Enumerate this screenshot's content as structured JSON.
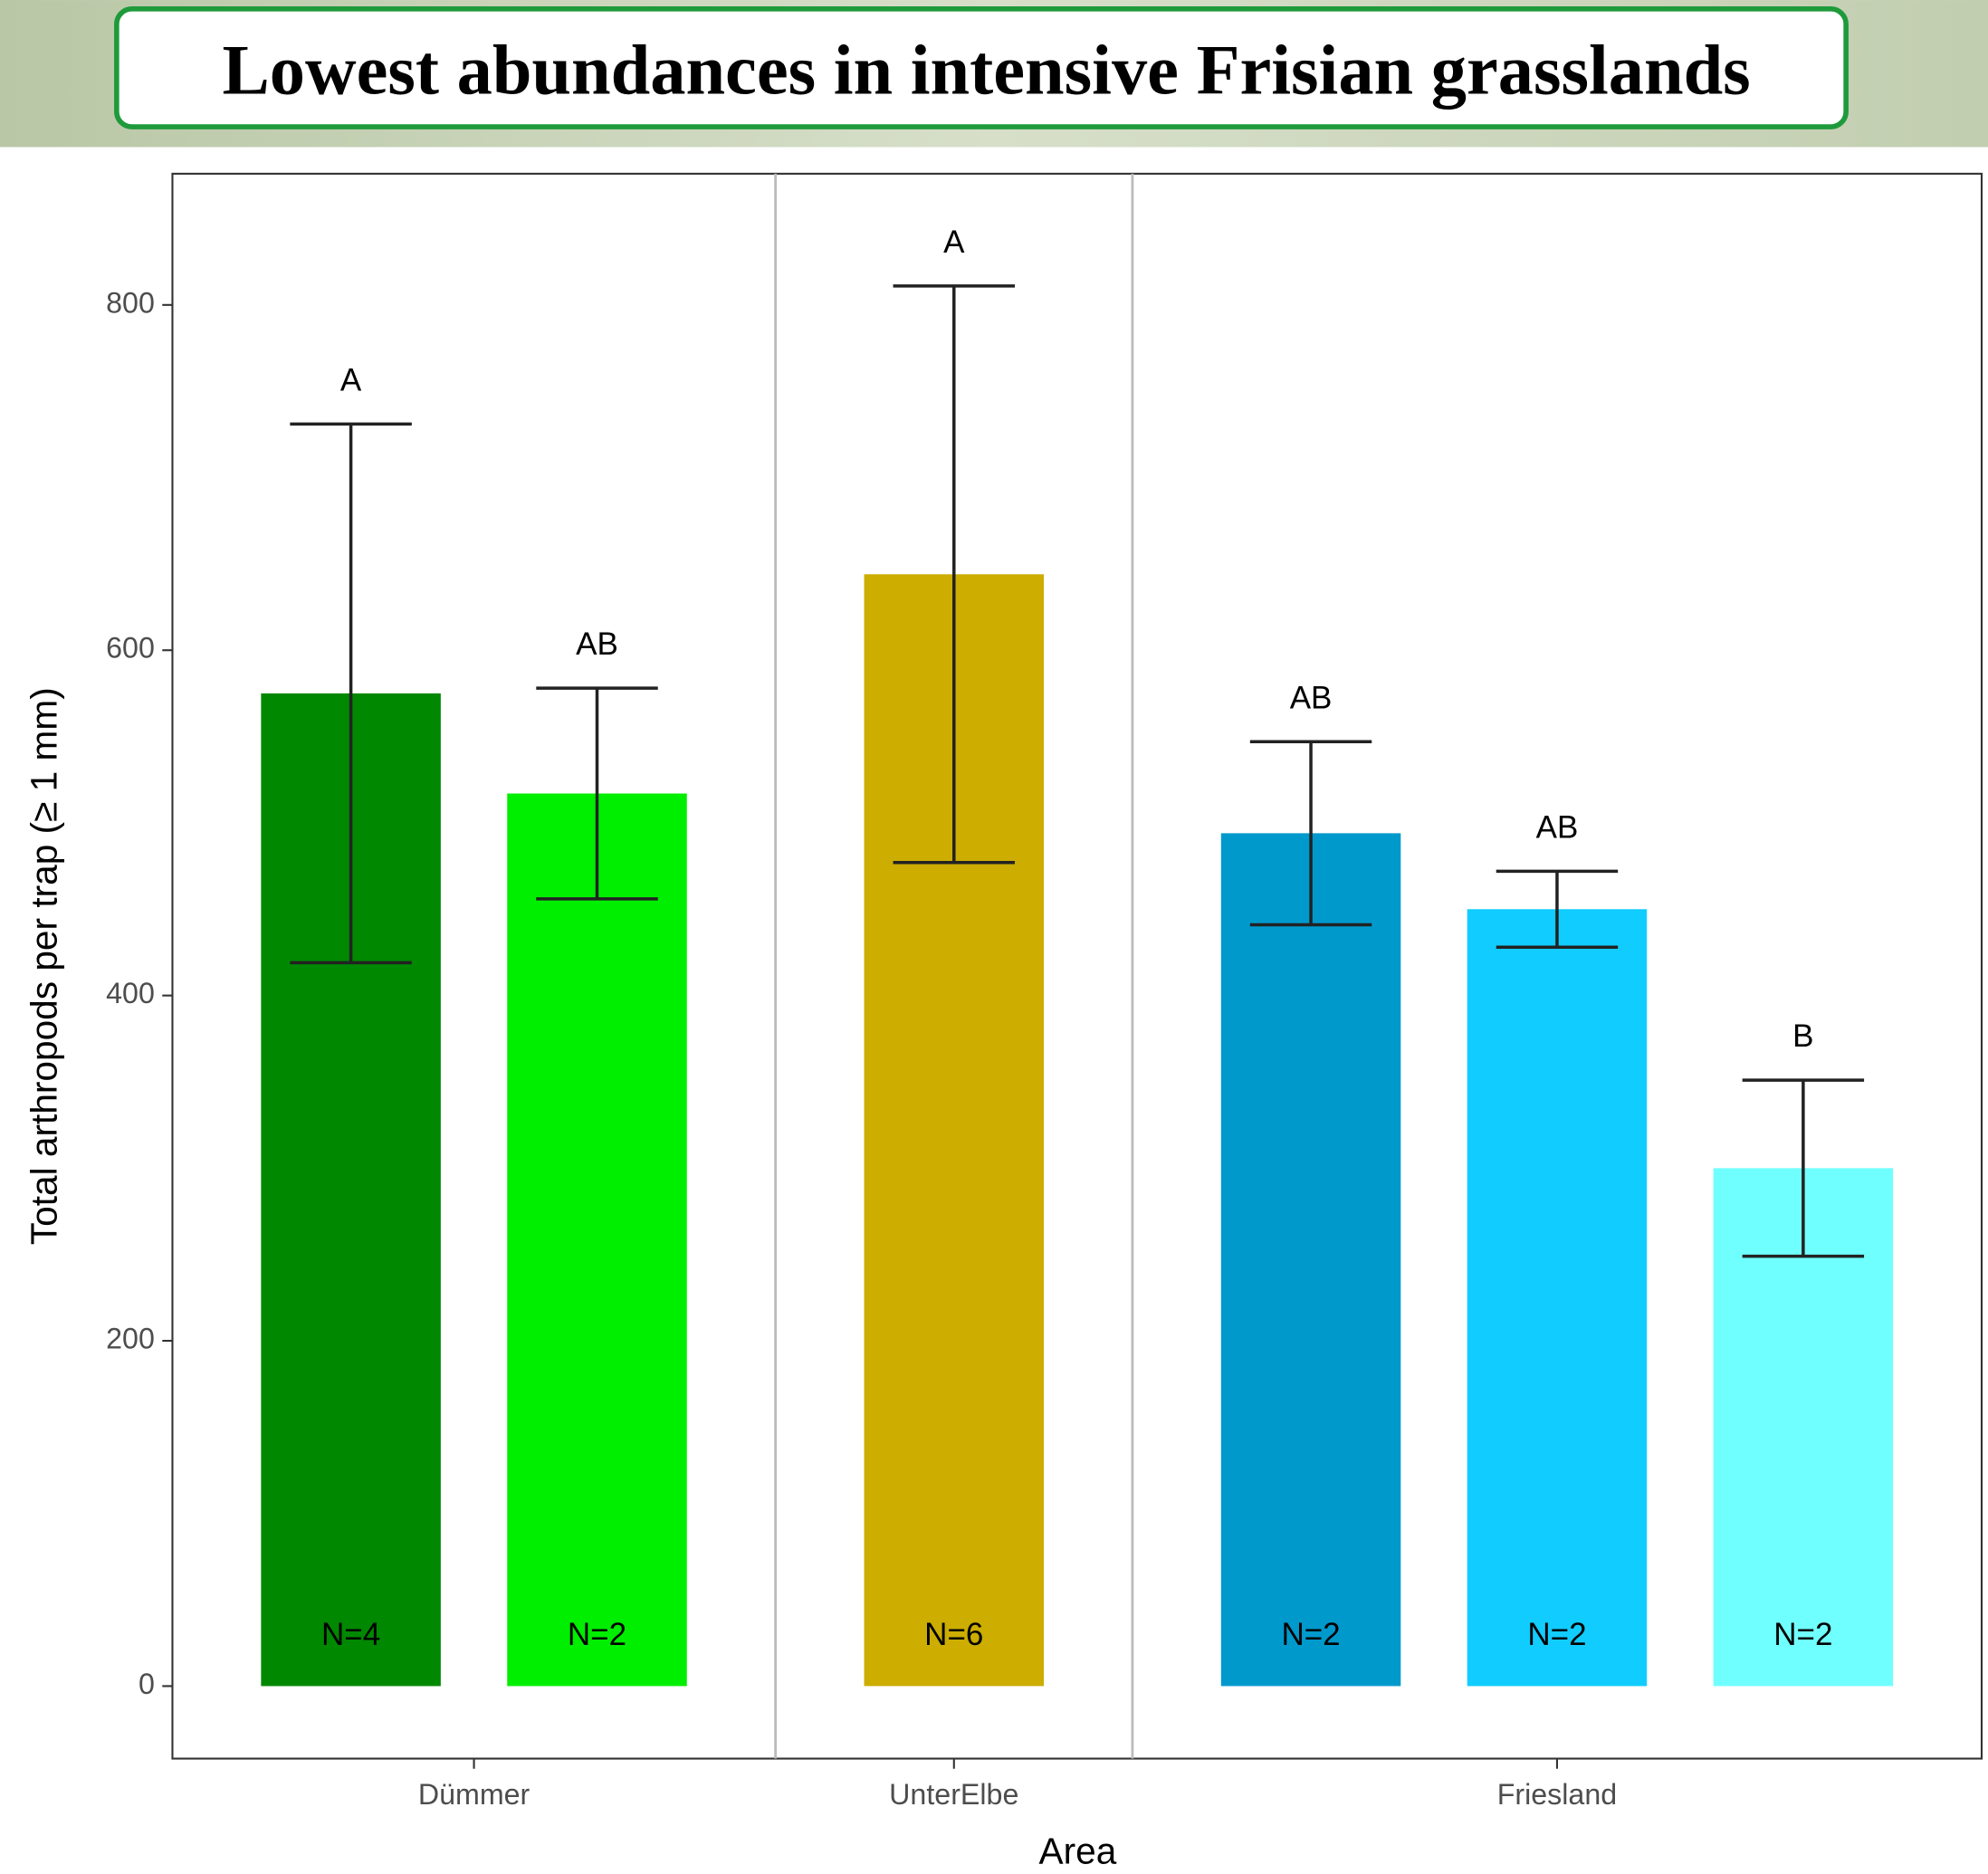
{
  "chart_data": {
    "type": "bar",
    "title": "Lowest abundances in intensive Frisian grasslands",
    "x_label": "Area",
    "y_label": "Total arthropods per trap (≥ 1 mm)",
    "ylim": [
      -42,
      876
    ],
    "yticks": [
      0,
      200,
      400,
      600,
      800
    ],
    "groups": [
      {
        "name": "Dümmer",
        "values": [
          575,
          517
        ],
        "errors": [
          156,
          61
        ],
        "letters": [
          "A",
          "AB"
        ],
        "n_labels": [
          "N=4",
          "N=2"
        ],
        "colors": [
          "#008800",
          "#00ee00"
        ]
      },
      {
        "name": "UnterElbe",
        "values": [
          644
        ],
        "errors": [
          167
        ],
        "letters": [
          "A"
        ],
        "n_labels": [
          "N=6"
        ],
        "colors": [
          "#ccad00"
        ]
      },
      {
        "name": "Friesland",
        "values": [
          494,
          450,
          300
        ],
        "errors": [
          53,
          22,
          51
        ],
        "letters": [
          "AB",
          "AB",
          "B"
        ],
        "n_labels": [
          "N=2",
          "N=2",
          "N=2"
        ],
        "colors": [
          "#0099cc",
          "#11ccff",
          "#70ffff"
        ]
      }
    ]
  }
}
